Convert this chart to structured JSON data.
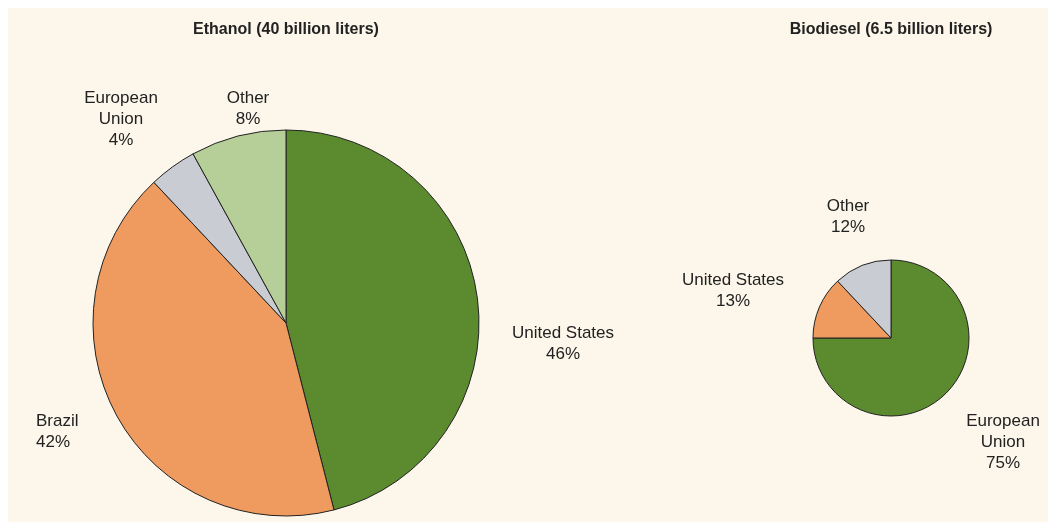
{
  "chart_data": [
    {
      "type": "pie",
      "title": "Ethanol (40 billion liters)",
      "categories": [
        "United States",
        "Brazil",
        "European Union",
        "Other"
      ],
      "values": [
        46,
        42,
        4,
        8
      ],
      "colors": [
        "#5b8a2f",
        "#ef9a5e",
        "#c9ccd3",
        "#b6cf98"
      ],
      "value_labels": [
        "46%",
        "42%",
        "4%",
        "8%"
      ]
    },
    {
      "type": "pie",
      "title": "Biodiesel (6.5 billion liters)",
      "categories": [
        "European Union",
        "United States",
        "Other"
      ],
      "values": [
        75,
        13,
        12
      ],
      "colors": [
        "#5b8a2f",
        "#ef9a5e",
        "#c9ccd3"
      ],
      "value_labels": [
        "75%",
        "13%",
        "12%"
      ]
    }
  ]
}
